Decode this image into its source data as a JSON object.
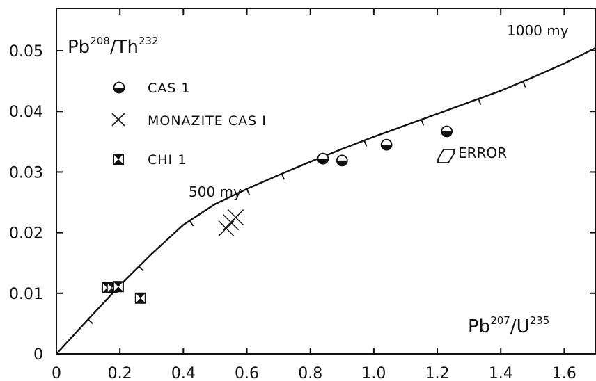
{
  "chart_data": {
    "type": "scatter",
    "title": "",
    "xlabel": {
      "base1": "Pb",
      "sup1": "207",
      "slash": "/",
      "base2": "U",
      "sup2": "235"
    },
    "ylabel": {
      "base1": "Pb",
      "sup1": "208",
      "slash": "/",
      "base2": "Th",
      "sup2": "232"
    },
    "xlim": [
      0,
      1.7
    ],
    "ylim": [
      0,
      0.057
    ],
    "x_ticks": [
      0,
      0.2,
      0.4,
      0.6,
      0.8,
      1.0,
      1.2,
      1.4,
      1.6
    ],
    "x_tick_labels": [
      "0",
      "0.2",
      "0.4",
      "0.6",
      "0.8",
      "1.0",
      "1.2",
      "1.4",
      "1.6"
    ],
    "y_ticks": [
      0,
      0.01,
      0.02,
      0.03,
      0.04,
      0.05
    ],
    "y_tick_labels": [
      "0",
      "0.01",
      "0.02",
      "0.03",
      "0.04",
      "0.05"
    ],
    "grid": false,
    "legend_position": "upper-left",
    "concordia": {
      "label_500": "500 my",
      "label_1000": "1000 my",
      "x": [
        0,
        0.1,
        0.2,
        0.3,
        0.4,
        0.5,
        0.6,
        0.7,
        0.8,
        0.9,
        1.0,
        1.1,
        1.2,
        1.3,
        1.4,
        1.5,
        1.6,
        1.7
      ],
      "y": [
        0,
        0.0057,
        0.0113,
        0.0165,
        0.0213,
        0.0247,
        0.0272,
        0.0295,
        0.0317,
        0.0338,
        0.0358,
        0.0377,
        0.0396,
        0.0415,
        0.0434,
        0.0456,
        0.0479,
        0.0505
      ],
      "tick_marks_x": [
        0.1,
        0.26,
        0.42,
        0.6,
        0.71,
        0.84,
        0.97,
        1.15,
        1.33,
        1.47
      ]
    },
    "series": [
      {
        "name": "CAS 1",
        "marker": "half-filled-circle",
        "points": [
          {
            "x": 0.84,
            "y": 0.0322
          },
          {
            "x": 0.9,
            "y": 0.0319
          },
          {
            "x": 1.04,
            "y": 0.0345
          },
          {
            "x": 1.23,
            "y": 0.0367
          }
        ]
      },
      {
        "name": "MONAZITE CAS I",
        "marker": "cross",
        "points": [
          {
            "x": 0.535,
            "y": 0.0207
          },
          {
            "x": 0.55,
            "y": 0.0217
          },
          {
            "x": 0.565,
            "y": 0.0225
          }
        ]
      },
      {
        "name": "CHI 1",
        "marker": "crossed-square",
        "points": [
          {
            "x": 0.16,
            "y": 0.0109
          },
          {
            "x": 0.175,
            "y": 0.0109
          },
          {
            "x": 0.195,
            "y": 0.0111
          },
          {
            "x": 0.265,
            "y": 0.0092
          }
        ]
      }
    ],
    "error_symbol": {
      "label": "ERROR",
      "x": 1.22,
      "y": 0.0315
    }
  }
}
